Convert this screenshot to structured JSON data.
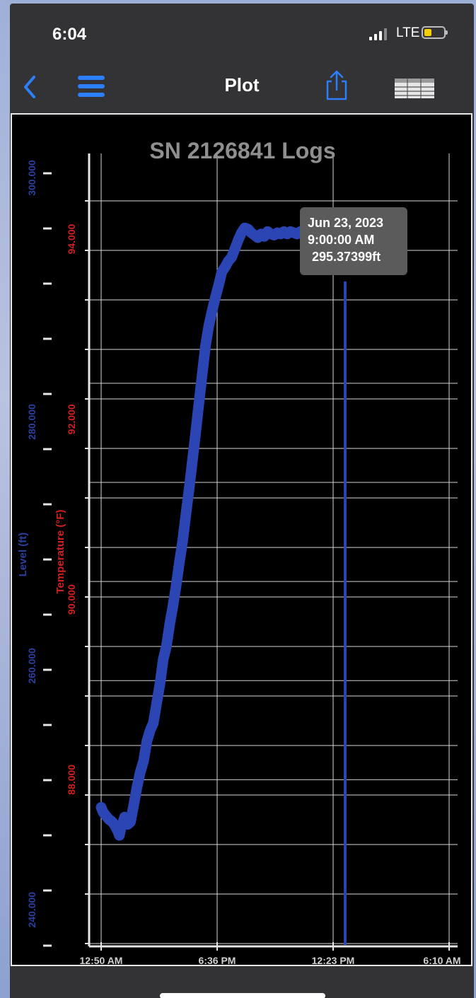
{
  "status_bar": {
    "time": "6:04",
    "network": "LTE",
    "battery_color": "#f2cd00"
  },
  "nav": {
    "title": "Plot",
    "back_icon": "chevron-left-icon",
    "menu_icon": "hamburger-menu-icon",
    "share_icon": "share-icon",
    "table_icon": "table-view-icon",
    "accent": "#2d7ff9"
  },
  "chart_data": {
    "type": "line",
    "title": "SN 2126841 Logs",
    "x_tick_labels": [
      "12:50 AM",
      "6:36 PM",
      "12:23 PM",
      "6:10 AM"
    ],
    "y_axes": [
      {
        "label": "Level (ft)",
        "color": "#2a3fa0",
        "ticks": [
          240,
          260,
          280,
          300
        ],
        "tick_labels": [
          "240.000",
          "260.000",
          "280.000",
          "300.000"
        ],
        "range": [
          237,
          302
        ]
      },
      {
        "label": "Temperature (°F)",
        "color": "#d02020",
        "ticks": [
          88,
          90,
          92,
          94
        ],
        "tick_labels": [
          "88.000",
          "90.000",
          "92.000",
          "94.000"
        ],
        "range": [
          86.15,
          94.95
        ]
      }
    ],
    "grid": true,
    "series": [
      {
        "axis": "Level (ft)",
        "color": "#2b45b5",
        "x_hours": [
          0,
          0.3,
          0.6,
          0.9,
          1.2,
          1.5,
          1.7,
          2.0,
          2.2,
          2.5,
          2.8,
          3.0,
          3.3,
          3.6,
          3.9,
          4.1,
          4.5,
          5.0,
          5.5,
          6.0,
          6.5,
          7.0,
          7.5,
          8.0,
          8.5,
          9.0,
          9.5,
          10.0,
          10.5,
          11.0,
          11.5,
          12.0,
          12.5,
          13.0,
          13.5,
          14.0,
          14.5,
          15.0,
          15.5,
          16.0,
          16.5,
          17.0,
          17.5,
          18.0,
          18.5,
          19.0,
          19.5,
          20.0,
          20.5,
          21.0,
          21.5,
          22.0,
          22.5,
          23.0,
          23.5,
          24.0,
          24.5,
          25.0,
          25.5,
          26.0,
          26.5,
          27.0,
          27.5,
          28.0,
          28.5,
          29.0,
          29.5,
          30.0,
          30.5,
          31.0,
          31.5,
          32.0,
          32.2,
          32.5,
          32.8
        ],
        "values": [
          248.4,
          248.0,
          247.8,
          247.6,
          247.4,
          247.3,
          247.2,
          247.0,
          246.8,
          246.5,
          246.1,
          246.6,
          247.1,
          247.6,
          247.4,
          247.0,
          247.2,
          248.6,
          250.1,
          251.3,
          252.2,
          253.8,
          254.7,
          255.3,
          256.9,
          258.5,
          260.5,
          261.6,
          263.4,
          264.9,
          266.6,
          268.5,
          270.3,
          272.5,
          274.6,
          276.9,
          279.2,
          281.6,
          284.0,
          286.3,
          287.9,
          289.1,
          290.2,
          291.2,
          292.3,
          292.7,
          293.2,
          293.5,
          294.2,
          294.9,
          295.5,
          295.9,
          295.8,
          295.5,
          295.3,
          295.1,
          295.4,
          295.2,
          295.6,
          295.4,
          295.3,
          295.5,
          295.4,
          295.6,
          295.4,
          295.6,
          295.5,
          295.4,
          295.6,
          295.4,
          295.5,
          295.4,
          295.7,
          295.5,
          295.4
        ]
      }
    ],
    "tooltip": {
      "date": "Jun 23, 2023",
      "time": "9:00:00 AM",
      "value": "295.37399ft"
    },
    "cursor_color": "#2b45b5"
  }
}
